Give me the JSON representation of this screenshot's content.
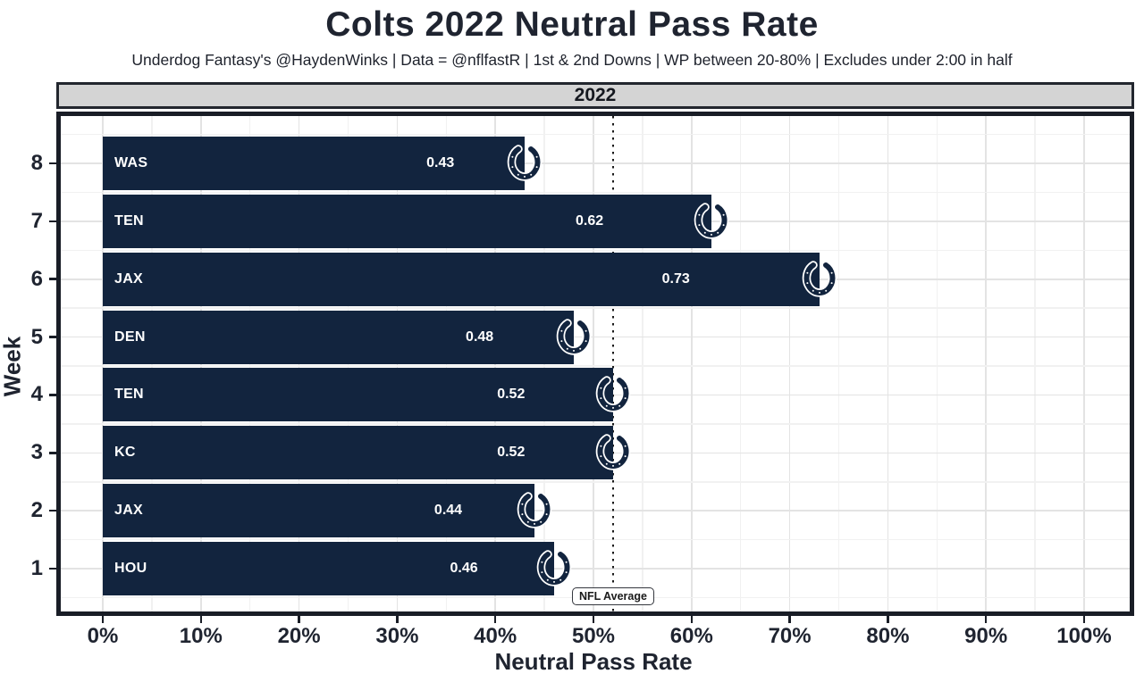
{
  "header": {
    "title": "Colts 2022 Neutral Pass Rate",
    "subtitle": "Underdog Fantasy's @HaydenWinks | Data = @nflfastR | 1st & 2nd Downs | WP between 20-80% | Excludes under 2:00 in half"
  },
  "chart_data": {
    "type": "bar",
    "orientation": "horizontal",
    "title": "Colts 2022 Neutral Pass Rate",
    "subtitle": "Underdog Fantasy's @HaydenWinks | Data = @nflfastR | 1st & 2nd Downs | WP between 20-80% | Excludes under 2:00 in half",
    "facet_label": "2022",
    "xlabel": "Neutral Pass Rate",
    "ylabel": "Week",
    "xlim": [
      0,
      1
    ],
    "x_tick_values": [
      0,
      0.1,
      0.2,
      0.3,
      0.4,
      0.5,
      0.6,
      0.7,
      0.8,
      0.9,
      1.0
    ],
    "x_tick_labels": [
      "0%",
      "10%",
      "20%",
      "30%",
      "40%",
      "50%",
      "60%",
      "70%",
      "80%",
      "90%",
      "100%"
    ],
    "weeks": [
      8,
      7,
      6,
      5,
      4,
      3,
      2,
      1
    ],
    "bars": [
      {
        "week": 8,
        "opponent": "WAS",
        "value": 0.43
      },
      {
        "week": 7,
        "opponent": "TEN",
        "value": 0.62
      },
      {
        "week": 6,
        "opponent": "JAX",
        "value": 0.73
      },
      {
        "week": 5,
        "opponent": "DEN",
        "value": 0.48
      },
      {
        "week": 4,
        "opponent": "TEN",
        "value": 0.52
      },
      {
        "week": 3,
        "opponent": "KC",
        "value": 0.52
      },
      {
        "week": 2,
        "opponent": "JAX",
        "value": 0.44
      },
      {
        "week": 1,
        "opponent": "HOU",
        "value": 0.46
      }
    ],
    "reference_line": {
      "value": 0.52,
      "label": "NFL Average",
      "style": "dotted"
    },
    "grid": true,
    "legend": false
  },
  "colors": {
    "bar": "#12243e",
    "bar_label": "#ffffff",
    "text": "#1f2430",
    "strip_bg": "#d4d4d4",
    "panel_border": "#191d26",
    "grid_major": "#e3e3e3",
    "grid_minor": "#f1f1f1",
    "reference_line": "#1a1a1a"
  },
  "icons": {
    "bar_end": "colts-horseshoe-icon"
  }
}
